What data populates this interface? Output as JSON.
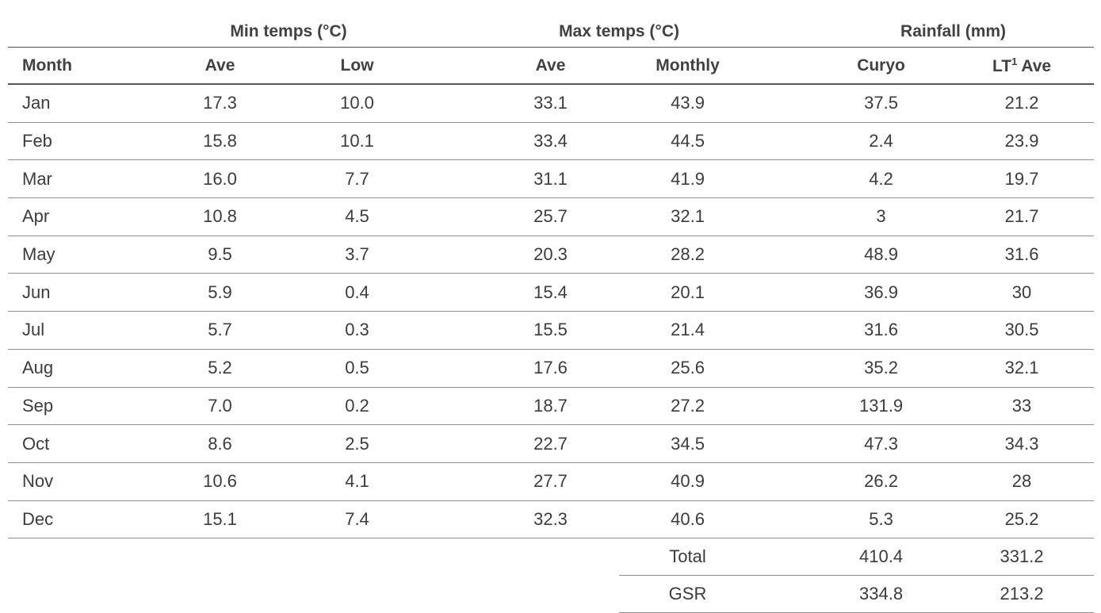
{
  "table": {
    "groups": [
      {
        "label": "Min temps (°C)"
      },
      {
        "label": "Max temps (°C)"
      },
      {
        "label": "Rainfall (mm)"
      }
    ],
    "columns": {
      "month": "Month",
      "min_ave": "Ave",
      "min_low": "Low",
      "max_ave": "Ave",
      "max_monthly": "Monthly",
      "rain_curyo": "Curyo",
      "rain_lt_ave_prefix": "LT",
      "rain_lt_ave_sup": "1",
      "rain_lt_ave_suffix": " Ave"
    },
    "rows": [
      {
        "month": "Jan",
        "min_ave": "17.3",
        "min_low": "10.0",
        "max_ave": "33.1",
        "max_monthly": "43.9",
        "rain_curyo": "37.5",
        "rain_lt": "21.2"
      },
      {
        "month": "Feb",
        "min_ave": "15.8",
        "min_low": "10.1",
        "max_ave": "33.4",
        "max_monthly": "44.5",
        "rain_curyo": "2.4",
        "rain_lt": "23.9"
      },
      {
        "month": "Mar",
        "min_ave": "16.0",
        "min_low": "7.7",
        "max_ave": "31.1",
        "max_monthly": "41.9",
        "rain_curyo": "4.2",
        "rain_lt": "19.7"
      },
      {
        "month": "Apr",
        "min_ave": "10.8",
        "min_low": "4.5",
        "max_ave": "25.7",
        "max_monthly": "32.1",
        "rain_curyo": "3",
        "rain_lt": "21.7"
      },
      {
        "month": "May",
        "min_ave": "9.5",
        "min_low": "3.7",
        "max_ave": "20.3",
        "max_monthly": "28.2",
        "rain_curyo": "48.9",
        "rain_lt": "31.6"
      },
      {
        "month": "Jun",
        "min_ave": "5.9",
        "min_low": "0.4",
        "max_ave": "15.4",
        "max_monthly": "20.1",
        "rain_curyo": "36.9",
        "rain_lt": "30"
      },
      {
        "month": "Jul",
        "min_ave": "5.7",
        "min_low": "0.3",
        "max_ave": "15.5",
        "max_monthly": "21.4",
        "rain_curyo": "31.6",
        "rain_lt": "30.5"
      },
      {
        "month": "Aug",
        "min_ave": "5.2",
        "min_low": "0.5",
        "max_ave": "17.6",
        "max_monthly": "25.6",
        "rain_curyo": "35.2",
        "rain_lt": "32.1"
      },
      {
        "month": "Sep",
        "min_ave": "7.0",
        "min_low": "0.2",
        "max_ave": "18.7",
        "max_monthly": "27.2",
        "rain_curyo": "131.9",
        "rain_lt": "33"
      },
      {
        "month": "Oct",
        "min_ave": "8.6",
        "min_low": "2.5",
        "max_ave": "22.7",
        "max_monthly": "34.5",
        "rain_curyo": "47.3",
        "rain_lt": "34.3"
      },
      {
        "month": "Nov",
        "min_ave": "10.6",
        "min_low": "4.1",
        "max_ave": "27.7",
        "max_monthly": "40.9",
        "rain_curyo": "26.2",
        "rain_lt": "28"
      },
      {
        "month": "Dec",
        "min_ave": "15.1",
        "min_low": "7.4",
        "max_ave": "32.3",
        "max_monthly": "40.6",
        "rain_curyo": "5.3",
        "rain_lt": "25.2"
      }
    ],
    "summary": [
      {
        "label": "Total",
        "curyo": "410.4",
        "lt": "331.2"
      },
      {
        "label": "GSR",
        "curyo": "334.8",
        "lt": "213.2"
      }
    ]
  }
}
